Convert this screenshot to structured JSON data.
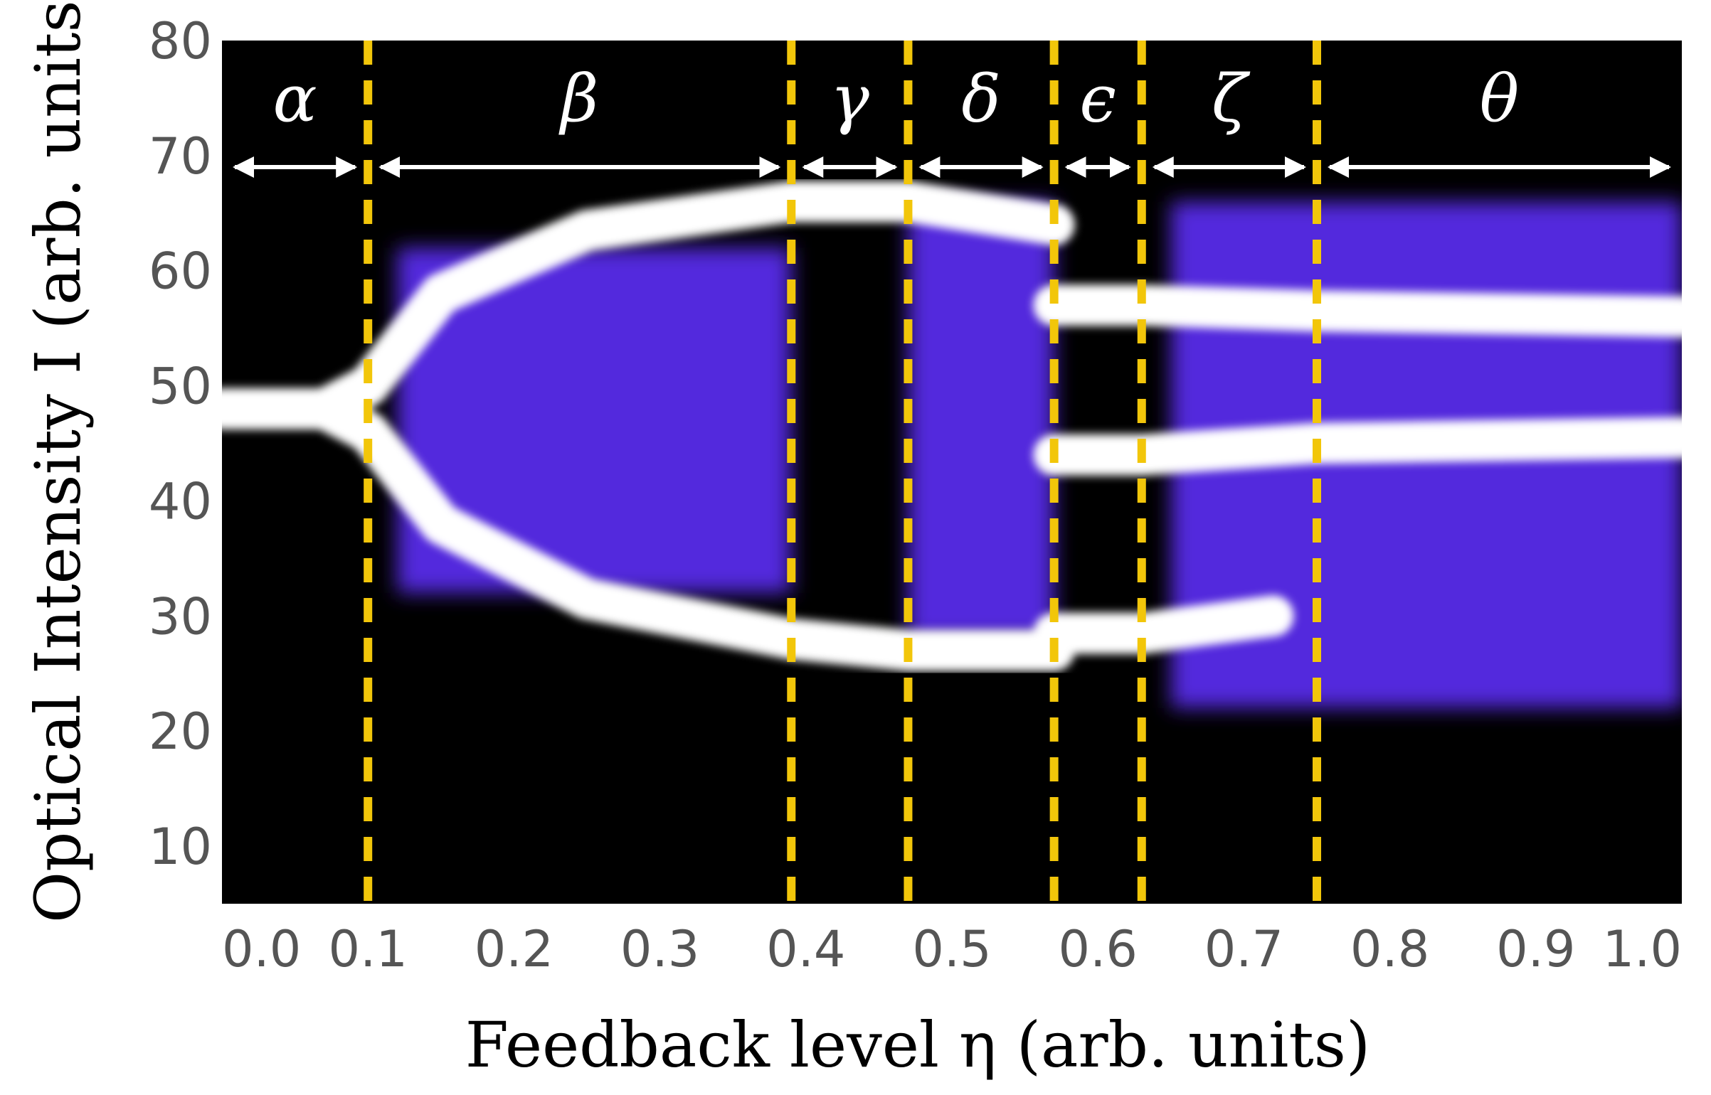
{
  "chart_data": {
    "type": "heatmap",
    "title": "",
    "xlabel": "Feedback level η (arb. units)",
    "ylabel": "Optical Intensity I (arb. units)",
    "xlim": [
      0.0,
      1.0
    ],
    "ylim": [
      5,
      80
    ],
    "x_ticks": [
      "0.0",
      "0.1",
      "0.2",
      "0.3",
      "0.4",
      "0.5",
      "0.6",
      "0.7",
      "0.8",
      "0.9",
      "1.0"
    ],
    "y_ticks": [
      "10",
      "20",
      "30",
      "40",
      "50",
      "60",
      "70",
      "80"
    ],
    "region_boundaries": [
      0.1,
      0.39,
      0.47,
      0.57,
      0.63,
      0.75
    ],
    "regions": [
      {
        "label": "α",
        "x_start": 0.0,
        "x_end": 0.1
      },
      {
        "label": "β",
        "x_start": 0.1,
        "x_end": 0.39
      },
      {
        "label": "γ",
        "x_start": 0.39,
        "x_end": 0.47
      },
      {
        "label": "δ",
        "x_start": 0.47,
        "x_end": 0.57
      },
      {
        "label": "ϵ",
        "x_start": 0.57,
        "x_end": 0.63
      },
      {
        "label": "ζ",
        "x_start": 0.63,
        "x_end": 0.75
      },
      {
        "label": "θ",
        "x_start": 0.75,
        "x_end": 1.0
      }
    ],
    "arrow_y_value": 69,
    "branches": [
      {
        "x": [
          0.0,
          0.07,
          0.1,
          0.15,
          0.25,
          0.39,
          0.47,
          0.57
        ],
        "y": [
          48,
          48,
          50,
          58,
          63.5,
          66,
          66,
          64
        ]
      },
      {
        "x": [
          0.0,
          0.07,
          0.1,
          0.15,
          0.25,
          0.39,
          0.47,
          0.57
        ],
        "y": [
          48,
          48,
          46,
          38,
          31.5,
          28,
          27,
          27
        ]
      },
      {
        "x": [
          0.57,
          0.63,
          0.75,
          1.0
        ],
        "y": [
          57,
          57,
          56.5,
          56
        ]
      },
      {
        "x": [
          0.57,
          0.63,
          0.75,
          1.0
        ],
        "y": [
          44,
          44,
          45,
          45.5
        ]
      },
      {
        "x": [
          0.57,
          0.63,
          0.72
        ],
        "y": [
          28.5,
          28.5,
          30
        ]
      }
    ],
    "chaotic_bands": [
      {
        "x_start": 0.12,
        "x_end": 0.39,
        "y_min": 32,
        "y_max": 62
      },
      {
        "x_start": 0.47,
        "x_end": 0.57,
        "y_min": 28,
        "y_max": 66
      },
      {
        "x_start": 0.65,
        "x_end": 1.0,
        "y_min": 22,
        "y_max": 66
      }
    ],
    "colors": {
      "background": "#000000",
      "signal": "#ffffff",
      "density": "#5a2cf0",
      "boundary": "#f2c60a",
      "arrow": "#ffffff"
    },
    "grid": false,
    "legend": "none"
  }
}
